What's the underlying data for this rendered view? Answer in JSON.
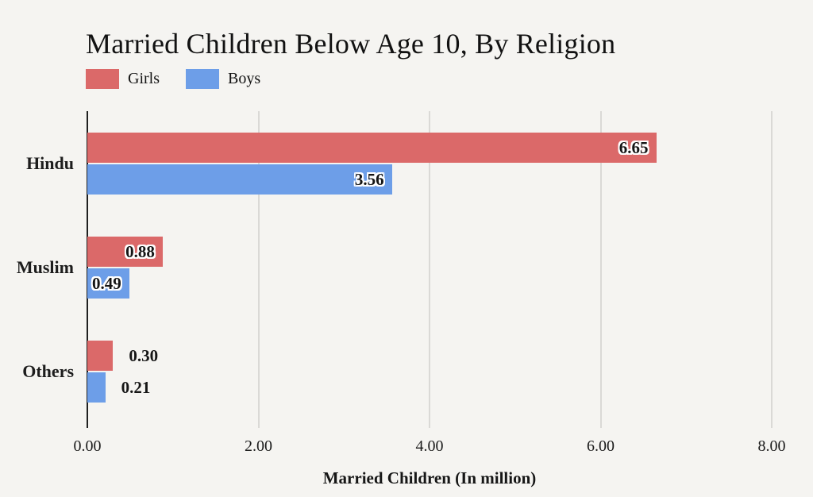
{
  "colors": {
    "background": "#F5F4F1",
    "gridline": "#DAD9D6",
    "axis": "#202020",
    "text": "#121212",
    "girls": "#DB6969",
    "boys": "#6D9EE8"
  },
  "chart_data": {
    "type": "bar",
    "orientation": "horizontal",
    "title": "Married Children Below Age 10, By Religion",
    "xlabel": "Married Children (In million)",
    "categories": [
      "Hindu",
      "Muslim",
      "Others"
    ],
    "series": [
      {
        "name": "Girls",
        "color": "#DB6969",
        "values": [
          6.65,
          0.88,
          0.3
        ]
      },
      {
        "name": "Boys",
        "color": "#6D9EE8",
        "values": [
          3.56,
          0.49,
          0.21
        ]
      }
    ],
    "value_labels": [
      [
        "6.65",
        "3.56"
      ],
      [
        "0.88",
        "0.49"
      ],
      [
        "0.30",
        "0.21"
      ]
    ],
    "label_placement": [
      [
        "inside",
        "inside"
      ],
      [
        "inside",
        "inside"
      ],
      [
        "outside",
        "outside"
      ]
    ],
    "xlim": [
      0,
      8
    ],
    "xticks": [
      0,
      2,
      4,
      6,
      8
    ],
    "xtick_labels": [
      "0.00",
      "2.00",
      "4.00",
      "6.00",
      "8.00"
    ],
    "grid": true,
    "legend_position": "top-left"
  }
}
